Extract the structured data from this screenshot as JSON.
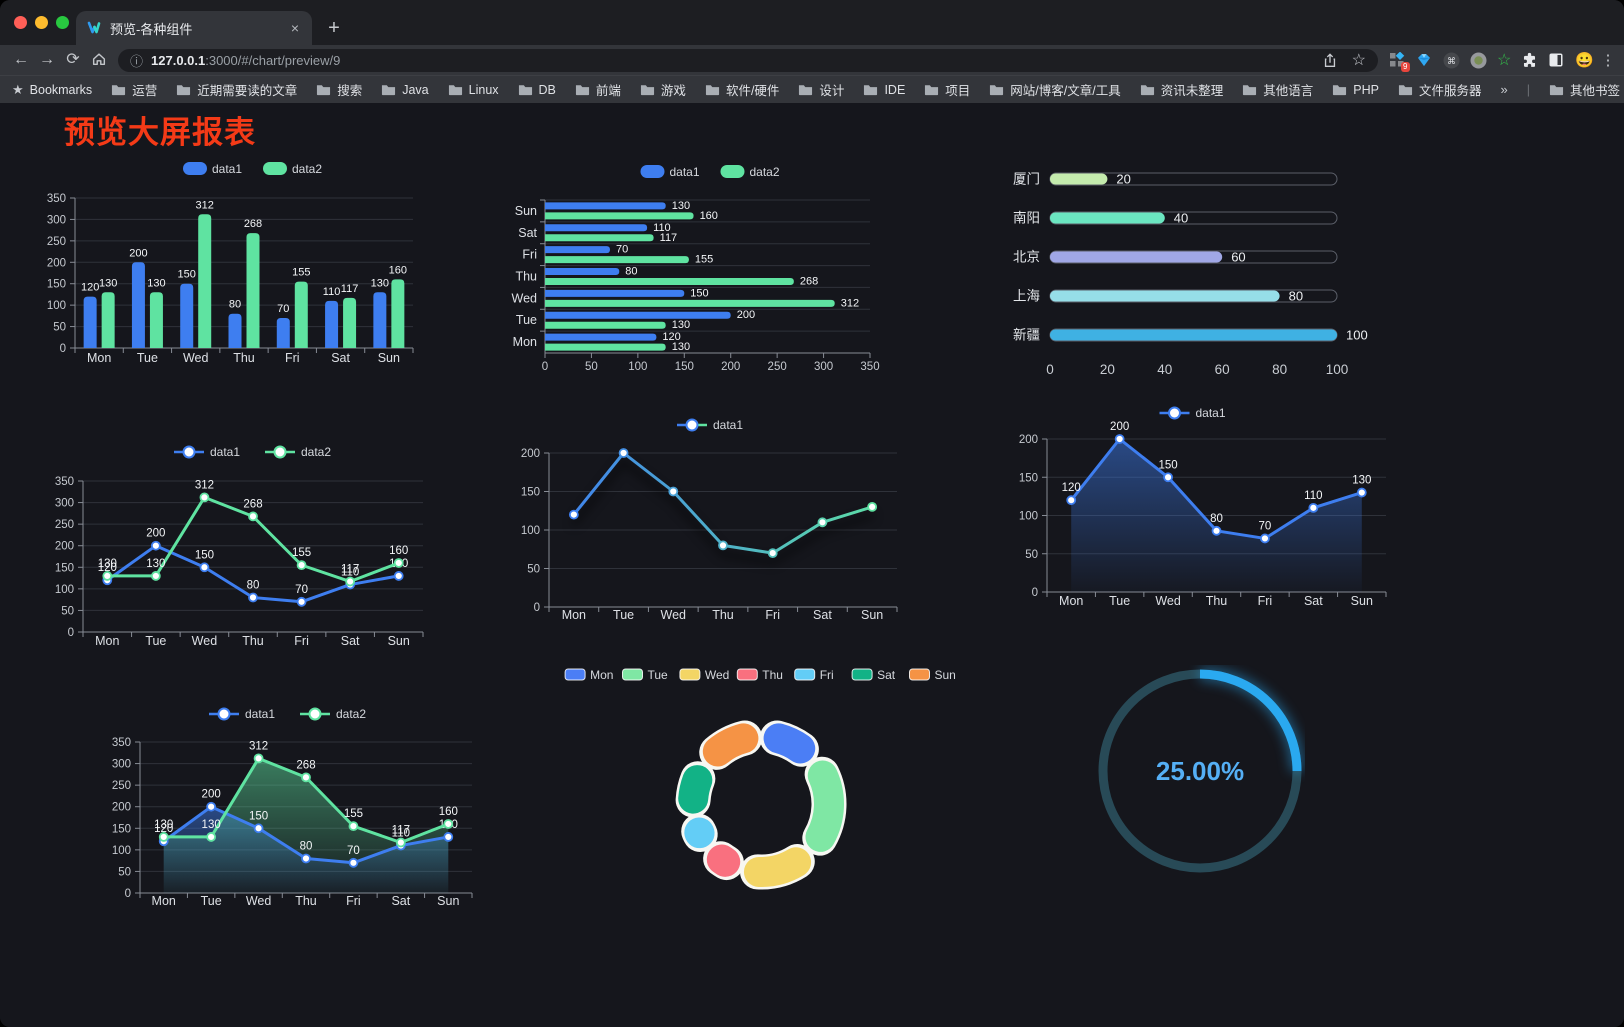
{
  "browser": {
    "window_controls": [
      "close",
      "minimize",
      "maximize"
    ],
    "tab_title": "预览-各种组件",
    "favicon": "v-logo-icon",
    "new_tab_glyph": "+",
    "tab_close_glyph": "×",
    "nav_icons": [
      "back-arrow",
      "forward-arrow",
      "reload",
      "home"
    ],
    "url_host": "127.0.0.1",
    "url_path": ":3000/#/chart/preview/9",
    "extension_badge_count": "9",
    "bookmarks_label": "Bookmarks",
    "bookmark_folders": [
      "运营",
      "近期需要读的文章",
      "搜索",
      "Java",
      "Linux",
      "DB",
      "前端",
      "游戏",
      "软件/硬件",
      "设计",
      "IDE",
      "项目",
      "网站/博客/文章/工具",
      "资讯未整理",
      "其他语言",
      "PHP",
      "文件服务器"
    ],
    "overflow_chevron": "»",
    "other_bookmarks_label": "其他书签"
  },
  "page": {
    "title": "预览大屏报表",
    "title_color": "#f43a17",
    "background": "#15161c"
  },
  "chart_data": [
    {
      "id": "bar-grouped",
      "kind": "vbar",
      "type": "bar",
      "categories": [
        "Mon",
        "Tue",
        "Wed",
        "Thu",
        "Fri",
        "Sat",
        "Sun"
      ],
      "series": [
        {
          "name": "data1",
          "color": "#3e7ef0",
          "values": [
            120,
            200,
            150,
            80,
            70,
            110,
            130
          ]
        },
        {
          "name": "data2",
          "color": "#5fe3a1",
          "values": [
            130,
            130,
            312,
            268,
            155,
            117,
            160
          ]
        }
      ],
      "ylim": [
        0,
        350
      ],
      "ystep": 50
    },
    {
      "id": "bar-horizontal",
      "kind": "hbar",
      "type": "bar",
      "orientation": "horizontal",
      "categories": [
        "Sun",
        "Sat",
        "Fri",
        "Thu",
        "Wed",
        "Tue",
        "Mon"
      ],
      "series": [
        {
          "name": "data1",
          "color": "#3e7ef0",
          "values": [
            130,
            110,
            70,
            80,
            150,
            200,
            120
          ]
        },
        {
          "name": "data2",
          "color": "#5fe3a1",
          "values": [
            160,
            117,
            155,
            268,
            312,
            130,
            130
          ]
        }
      ],
      "xlim": [
        0,
        350
      ],
      "xstep": 50
    },
    {
      "id": "capsule",
      "kind": "capsule",
      "type": "bar",
      "categories": [
        "厦门",
        "南阳",
        "北京",
        "上海",
        "新疆"
      ],
      "values": [
        20,
        40,
        60,
        80,
        100
      ],
      "colors": [
        "#c4ebad",
        "#6be6c1",
        "#a0a7e6",
        "#96dee8",
        "#3fb1e3"
      ],
      "xlim": [
        0,
        100
      ],
      "xticks": [
        0,
        20,
        40,
        60,
        80,
        100
      ]
    },
    {
      "id": "line-dual",
      "kind": "line",
      "type": "line",
      "categories": [
        "Mon",
        "Tue",
        "Wed",
        "Thu",
        "Fri",
        "Sat",
        "Sun"
      ],
      "series": [
        {
          "name": "data1",
          "color": "#3e7ef0",
          "values": [
            120,
            200,
            150,
            80,
            70,
            110,
            130
          ],
          "labels": true
        },
        {
          "name": "data2",
          "color": "#5fe3a1",
          "values": [
            130,
            130,
            312,
            268,
            155,
            117,
            160
          ],
          "labels": true
        }
      ],
      "ylim": [
        0,
        350
      ],
      "ystep": 50
    },
    {
      "id": "line-gradient",
      "kind": "line",
      "type": "line",
      "categories": [
        "Mon",
        "Tue",
        "Wed",
        "Thu",
        "Fri",
        "Sat",
        "Sun"
      ],
      "series": [
        {
          "name": "data1",
          "gradient": [
            "#3e7ef0",
            "#5fe3a1"
          ],
          "values": [
            120,
            200,
            150,
            80,
            70,
            110,
            130
          ],
          "labels": false,
          "shadow": true
        }
      ],
      "ylim": [
        0,
        200
      ],
      "ystep": 50
    },
    {
      "id": "line-area",
      "kind": "line",
      "type": "line",
      "categories": [
        "Mon",
        "Tue",
        "Wed",
        "Thu",
        "Fri",
        "Sat",
        "Sun"
      ],
      "series": [
        {
          "name": "data1",
          "color": "#3e7ef0",
          "values": [
            120,
            200,
            150,
            80,
            70,
            110,
            130
          ],
          "labels": true,
          "area": true
        }
      ],
      "ylim": [
        0,
        200
      ],
      "ystep": 50
    },
    {
      "id": "line-dual-area",
      "kind": "line",
      "type": "line",
      "categories": [
        "Mon",
        "Tue",
        "Wed",
        "Thu",
        "Fri",
        "Sat",
        "Sun"
      ],
      "series": [
        {
          "name": "data1",
          "color": "#3e7ef0",
          "values": [
            120,
            200,
            150,
            80,
            70,
            110,
            130
          ],
          "labels": true,
          "area": true
        },
        {
          "name": "data2",
          "color": "#5fe3a1",
          "values": [
            130,
            130,
            312,
            268,
            155,
            117,
            160
          ],
          "labels": true,
          "area": true
        }
      ],
      "ylim": [
        0,
        350
      ],
      "ystep": 50
    },
    {
      "id": "pie",
      "kind": "pie",
      "type": "pie",
      "categories": [
        "Mon",
        "Tue",
        "Wed",
        "Thu",
        "Fri",
        "Sat",
        "Sun"
      ],
      "values": [
        120,
        200,
        150,
        80,
        70,
        110,
        130
      ],
      "colors": [
        "#4b7ef5",
        "#7fe7a4",
        "#f3d565",
        "#f9707f",
        "#63cdf6",
        "#12b286",
        "#f59345"
      ]
    },
    {
      "id": "gauge",
      "kind": "gauge",
      "type": "other",
      "label": "25.00%",
      "percent": 25,
      "track_color": "#284a57",
      "progress_color": "#2aa9f0",
      "text_color": "#55aff5"
    }
  ]
}
